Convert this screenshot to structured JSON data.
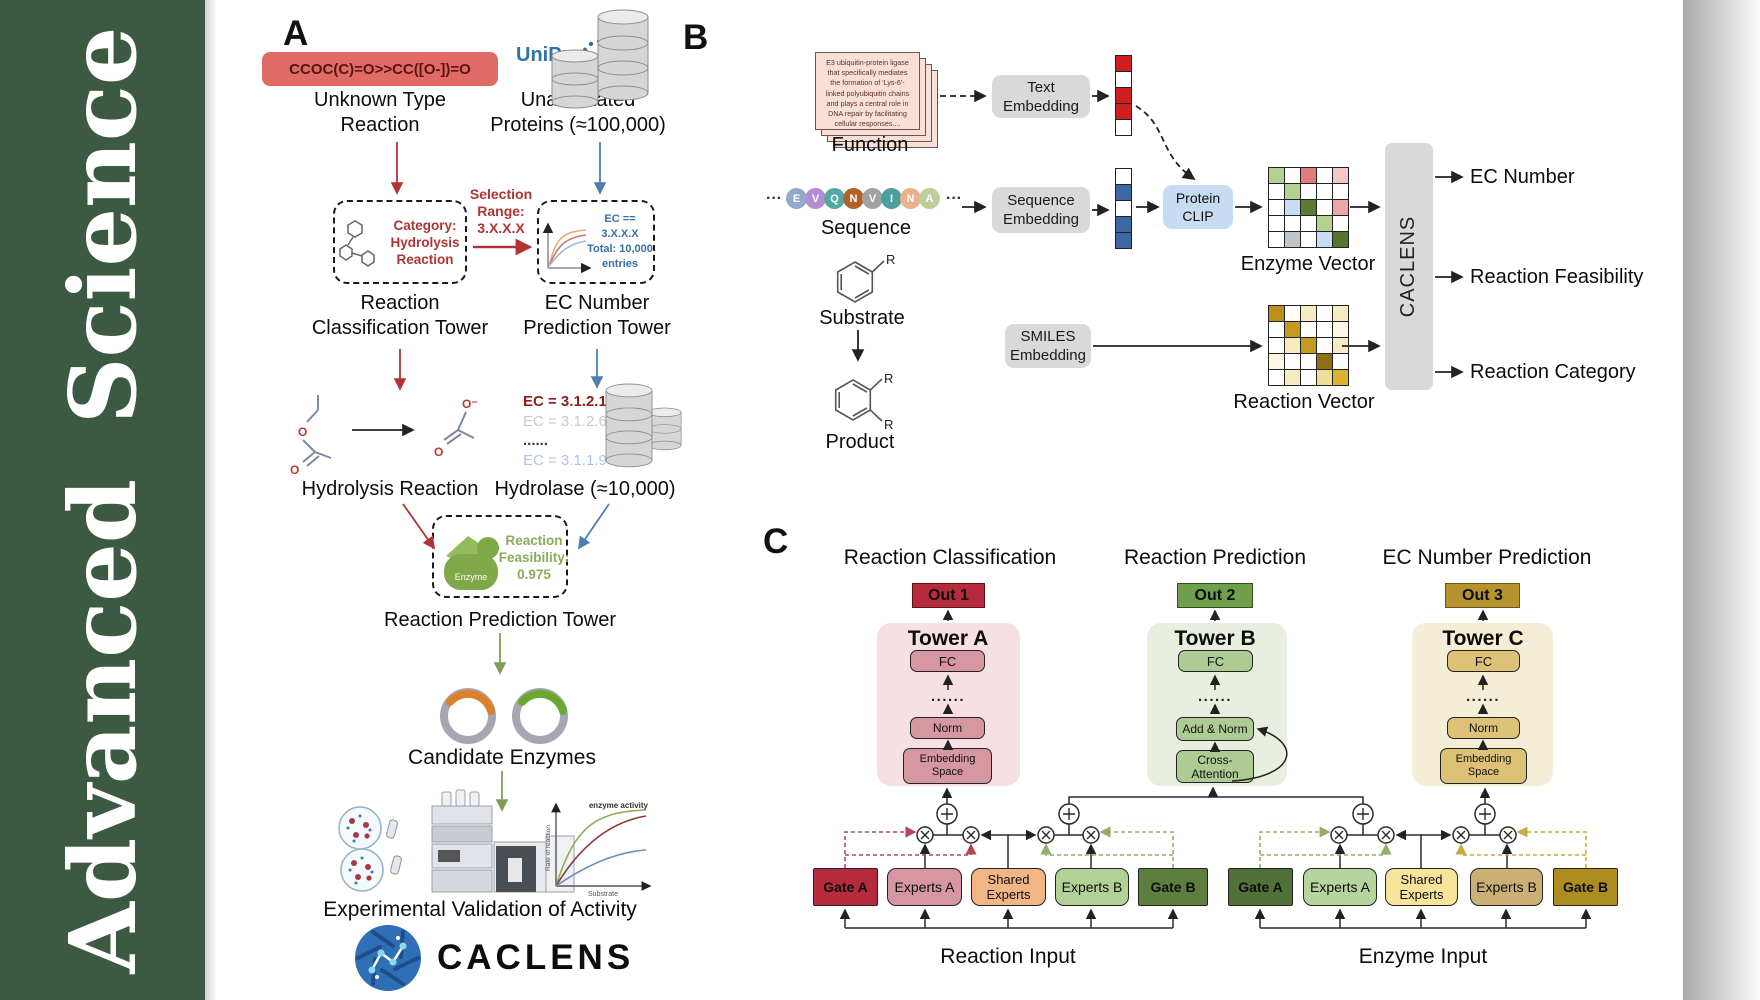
{
  "journal": {
    "word1": "Advanced",
    "word2": "Science",
    "bg_color": "#3c5a41"
  },
  "panelA": {
    "label": "A",
    "smiles": "CCOC(C)=O>>CC([O-])=O",
    "unknown_reaction": "Unknown Type\nReaction",
    "uniprot": "UniProt",
    "unannotated": "Unannotated\nProteins (≈100,000)",
    "category": "Category:\nHydrolysis\nReaction",
    "selection": "Selection\nRange:\n3.X.X.X",
    "ec_filter": "EC == 3.X.X.X\nTotal: 10,000\nentries",
    "classification_tower": "Reaction\nClassification Tower",
    "ec_tower": "EC Number\nPrediction Tower",
    "hydrolysis": "Hydrolysis Reaction",
    "hydrolase": "Hydrolase (≈10,000)",
    "ec_list": [
      {
        "text": "EC = 3.1.2.1",
        "color": "#8f1d1d",
        "bold": true
      },
      {
        "text": "EC = 3.1.2.6",
        "color": "#c9c9c9",
        "bold": false
      },
      {
        "text": "......",
        "color": "#3a3a3a",
        "bold": true
      },
      {
        "text": "EC = 3.1.1.9",
        "color": "#a9c6e3",
        "bold": false
      }
    ],
    "enzyme_badge": "Enzyme",
    "feasibility": "Reaction\nFeasibility:\n0.975",
    "prediction_tower": "Reaction Prediction Tower",
    "candidates": "Candidate Enzymes",
    "validation": "Experimental Validation of Activity",
    "plot": {
      "title": "enzyme activity",
      "xlabel": "Substrate",
      "ylabel": "Rate of reaction"
    },
    "logo": "CACLENS"
  },
  "panelB": {
    "label": "B",
    "function_text": "E3 ubiquitin-protein ligase that specifically mediates the formation of 'Lys-6'-linked polyubiquitin chains and plays a central role in DNA repair by facilitating cellular responses....",
    "function_label": "Function",
    "ellipsis": "···",
    "residues": [
      {
        "letter": "E",
        "color": "#93a9c9"
      },
      {
        "letter": "V",
        "color": "#b48ed2"
      },
      {
        "letter": "Q",
        "color": "#52aaa2"
      },
      {
        "letter": "N",
        "color": "#b0622a"
      },
      {
        "letter": "V",
        "color": "#a2a2a2"
      },
      {
        "letter": "I",
        "color": "#4d9f9f"
      },
      {
        "letter": "N",
        "color": "#ecb08c"
      },
      {
        "letter": "A",
        "color": "#bccf9a"
      }
    ],
    "sequence_label": "Sequence",
    "substrate_label": "Substrate",
    "product_label": "Product",
    "r_group": "R",
    "text_embedding": "Text\nEmbedding",
    "sequence_embedding": "Sequence\nEmbedding",
    "smiles_embedding": "SMILES\nEmbedding",
    "protein_clip": "Protein\nCLIP",
    "enzyme_vector_label": "Enzyme Vector",
    "reaction_vector_label": "Reaction Vector",
    "caclens": "CACLENS",
    "outputs": [
      "EC Number",
      "Reaction Feasibility",
      "Reaction Category"
    ],
    "text_vector": [
      "#cf1f1f",
      "#ffffff",
      "#cf1f1f",
      "#cf1f1f",
      "#ffffff"
    ],
    "seq_vector": [
      "#ffffff",
      "#3f67a5",
      "#ffffff",
      "#3f67a5",
      "#3f67a5"
    ],
    "enzyme_matrix": [
      "#b5d18f",
      "#ffffff",
      "#e07b7b",
      "#ffffff",
      "#f4c7c7",
      "#ffffff",
      "#b5d18f",
      "#ffffff",
      "#ffffff",
      "#ffffff",
      "#ffffff",
      "#c9ddf2",
      "#5c7c33",
      "#ffffff",
      "#eba7a7",
      "#ffffff",
      "#ffffff",
      "#ffffff",
      "#b5d18f",
      "#ffffff",
      "#ffffff",
      "#bcc5cc",
      "#ffffff",
      "#c9ddf2",
      "#55752f"
    ],
    "reaction_matrix": [
      "#bb8f1d",
      "#ffffff",
      "#f6ecc2",
      "#ffffff",
      "#f6ecc2",
      "#ffffff",
      "#c3991f",
      "#ffffff",
      "#ffffff",
      "#fdf8e3",
      "#ffffff",
      "#f6ecc2",
      "#c3991f",
      "#ffffff",
      "#f6ecc2",
      "#fdf8e3",
      "#ffffff",
      "#ffffff",
      "#8f6f14",
      "#ffffff",
      "#ffffff",
      "#f6ecc2",
      "#ffffff",
      "#f0dd9a",
      "#d9b42e"
    ]
  },
  "panelC": {
    "label": "C",
    "headings": [
      "Reaction Classification",
      "Reaction Prediction",
      "EC Number Prediction"
    ],
    "outs": [
      "Out 1",
      "Out 2",
      "Out 3"
    ],
    "tower_a": {
      "name": "Tower A",
      "fc": "FC",
      "dots": "......",
      "norm": "Norm",
      "embed": "Embedding\nSpace"
    },
    "tower_b": {
      "name": "Tower B",
      "fc": "FC",
      "dots": "......",
      "norm": "Add & Norm",
      "attn": "Cross-\nAttention"
    },
    "tower_c": {
      "name": "Tower C",
      "fc": "FC",
      "dots": "......",
      "norm": "Norm",
      "embed": "Embedding\nSpace"
    },
    "moe_left": {
      "gate_a": "Gate A",
      "experts_a": "Experts A",
      "shared": "Shared\nExperts",
      "experts_b": "Experts B",
      "gate_b": "Gate B",
      "input_label": "Reaction Input"
    },
    "moe_right": {
      "gate_a": "Gate A",
      "experts_a": "Experts A",
      "shared": "Shared\nExperts",
      "experts_b": "Experts B",
      "gate_b": "Gate B",
      "input_label": "Enzyme Input"
    }
  }
}
